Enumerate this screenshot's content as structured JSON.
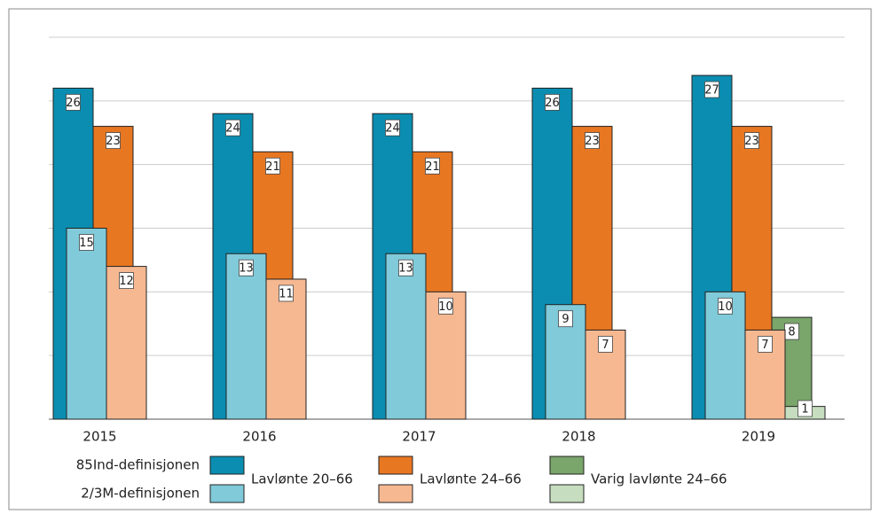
{
  "chart_data": {
    "type": "bar",
    "categories": [
      "2015",
      "2016",
      "2017",
      "2018",
      "2019"
    ],
    "definitions": [
      "85Ind-definisjonen",
      "2/3M-definisjonen"
    ],
    "series": [
      {
        "name": "Lavlønte 20–66",
        "colors": [
          "#0a8db0",
          "#80cad9"
        ],
        "values": [
          [
            26,
            24,
            24,
            26,
            27
          ],
          [
            15,
            13,
            13,
            9,
            10
          ]
        ]
      },
      {
        "name": "Lavlønte 24–66",
        "colors": [
          "#e87722",
          "#f5b891"
        ],
        "values": [
          [
            23,
            21,
            21,
            23,
            23
          ],
          [
            12,
            11,
            10,
            7,
            7
          ]
        ]
      },
      {
        "name": "Varig lavlønte 24–66",
        "colors": [
          "#7aa56b",
          "#c6ddbf"
        ],
        "values": [
          [
            null,
            null,
            null,
            null,
            8
          ],
          [
            null,
            null,
            null,
            null,
            1
          ]
        ]
      }
    ],
    "ylim": [
      0,
      30
    ],
    "yticks": [
      0,
      5,
      10,
      15,
      20,
      25,
      30
    ],
    "grid": true
  }
}
